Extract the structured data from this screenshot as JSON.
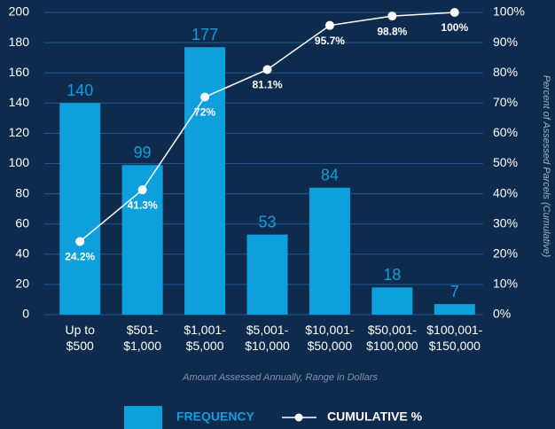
{
  "chart_data": {
    "type": "bar",
    "categories": [
      "Up to\n$500",
      "$501-\n$1,000",
      "$1,001-\n$5,000",
      "$5,001-\n$10,000",
      "$10,001-\n$50,000",
      "$50,001-\n$100,000",
      "$100,001-\n$150,000"
    ],
    "x_label": "Amount Assessed Annually, Range in Dollars",
    "y2_label": "Percent of Assessed Parcels (Cumulative)",
    "ylim": [
      0,
      200
    ],
    "yticks": [
      0,
      20,
      40,
      60,
      80,
      100,
      120,
      140,
      160,
      180,
      200
    ],
    "y2lim": [
      0,
      100
    ],
    "y2ticks": [
      {
        "value": 0,
        "label": "0%"
      },
      {
        "value": 10,
        "label": "10%"
      },
      {
        "value": 20,
        "label": "20%"
      },
      {
        "value": 30,
        "label": "30%"
      },
      {
        "value": 40,
        "label": "40%"
      },
      {
        "value": 50,
        "label": "50%"
      },
      {
        "value": 60,
        "label": "60%"
      },
      {
        "value": 70,
        "label": "70%"
      },
      {
        "value": 80,
        "label": "80%"
      },
      {
        "value": 90,
        "label": "90%"
      },
      {
        "value": 100,
        "label": "100%"
      }
    ],
    "grid": true,
    "series": [
      {
        "name": "FREQUENCY",
        "type": "bar",
        "color": "#0ea0dd",
        "values": [
          140,
          99,
          177,
          53,
          84,
          18,
          7
        ]
      },
      {
        "name": "CUMULATIVE %",
        "type": "line",
        "axis": "y2",
        "color": "#ffffff",
        "values": [
          24.2,
          41.3,
          72,
          81.1,
          95.7,
          98.8,
          100
        ],
        "value_labels": [
          "24.2%",
          "41.3%",
          "72%",
          "81.1%",
          "95.7%",
          "98.8%",
          "100%"
        ]
      }
    ]
  }
}
